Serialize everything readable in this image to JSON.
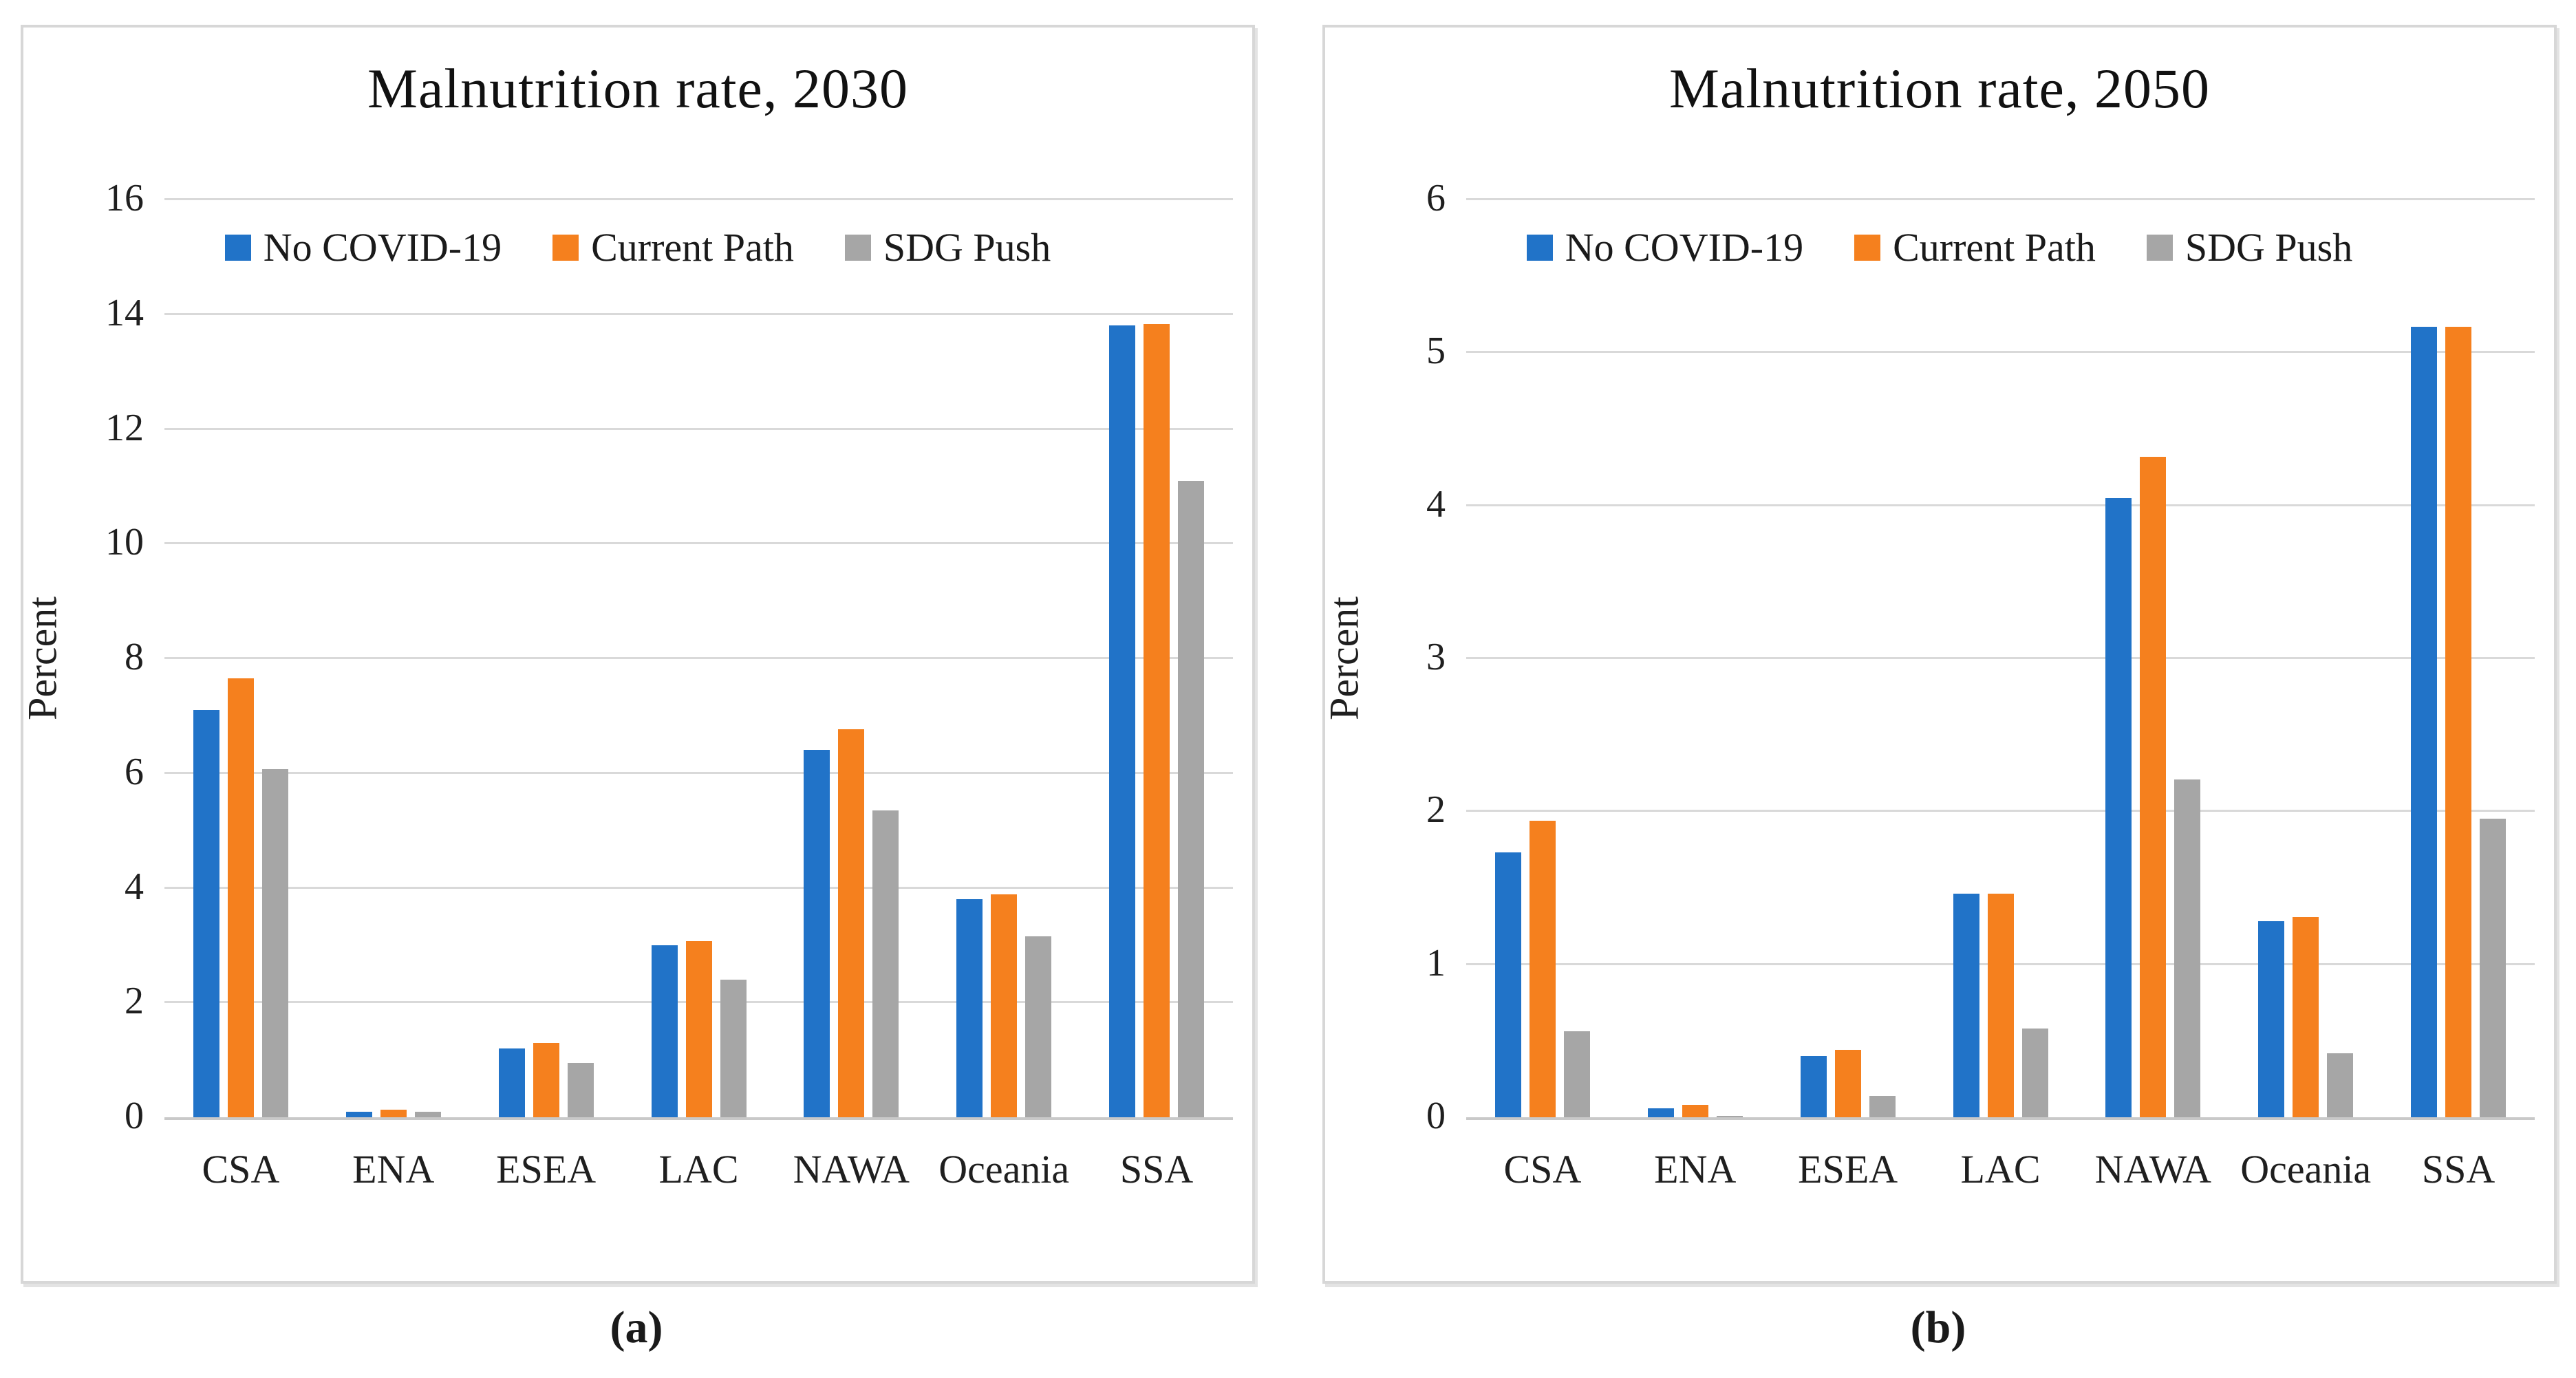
{
  "captions": {
    "a": "(a)",
    "b": "(b)"
  },
  "colors": {
    "no_covid": "#2173c8",
    "current_path": "#f5801e",
    "sdg_push": "#a6a6a6",
    "gridline": "#d9d9d9",
    "axis_line": "#c9c9c9",
    "panel_border": "#d7d7d7"
  },
  "chart_data": [
    {
      "type": "bar",
      "title": "Malnutrition rate, 2030",
      "xlabel": "",
      "ylabel": "Percent",
      "ylim": [
        0,
        16
      ],
      "ytick_step": 2,
      "yticks": [
        0,
        2,
        4,
        6,
        8,
        10,
        12,
        14,
        16
      ],
      "grid": true,
      "legend_position": "top",
      "categories": [
        "CSA",
        "ENA",
        "ESEA",
        "LAC",
        "NAWA",
        "Oceania",
        "SSA"
      ],
      "series": [
        {
          "name": "No COVID-19",
          "color": "#2173c8",
          "values": [
            7.1,
            0.1,
            1.2,
            3.0,
            6.4,
            3.8,
            13.8
          ]
        },
        {
          "name": "Current Path",
          "color": "#f5801e",
          "values": [
            7.65,
            0.13,
            1.3,
            3.07,
            6.77,
            3.89,
            13.83
          ]
        },
        {
          "name": "SDG Push",
          "color": "#a6a6a6",
          "values": [
            6.07,
            0.1,
            0.95,
            2.4,
            5.35,
            3.16,
            11.1
          ]
        }
      ]
    },
    {
      "type": "bar",
      "title": "Malnutrition rate, 2050",
      "xlabel": "",
      "ylabel": "Percent",
      "ylim": [
        0,
        6
      ],
      "ytick_step": 1,
      "yticks": [
        0,
        1,
        2,
        3,
        4,
        5,
        6
      ],
      "grid": true,
      "legend_position": "top",
      "categories": [
        "CSA",
        "ENA",
        "ESEA",
        "LAC",
        "NAWA",
        "Oceania",
        "SSA"
      ],
      "series": [
        {
          "name": "No COVID-19",
          "color": "#2173c8",
          "values": [
            1.73,
            0.06,
            0.4,
            1.46,
            4.05,
            1.28,
            5.17
          ]
        },
        {
          "name": "Current Path",
          "color": "#f5801e",
          "values": [
            1.94,
            0.08,
            0.44,
            1.46,
            4.32,
            1.31,
            5.17
          ]
        },
        {
          "name": "SDG Push",
          "color": "#a6a6a6",
          "values": [
            0.56,
            0.01,
            0.14,
            0.58,
            2.21,
            0.42,
            1.95
          ]
        }
      ]
    }
  ]
}
